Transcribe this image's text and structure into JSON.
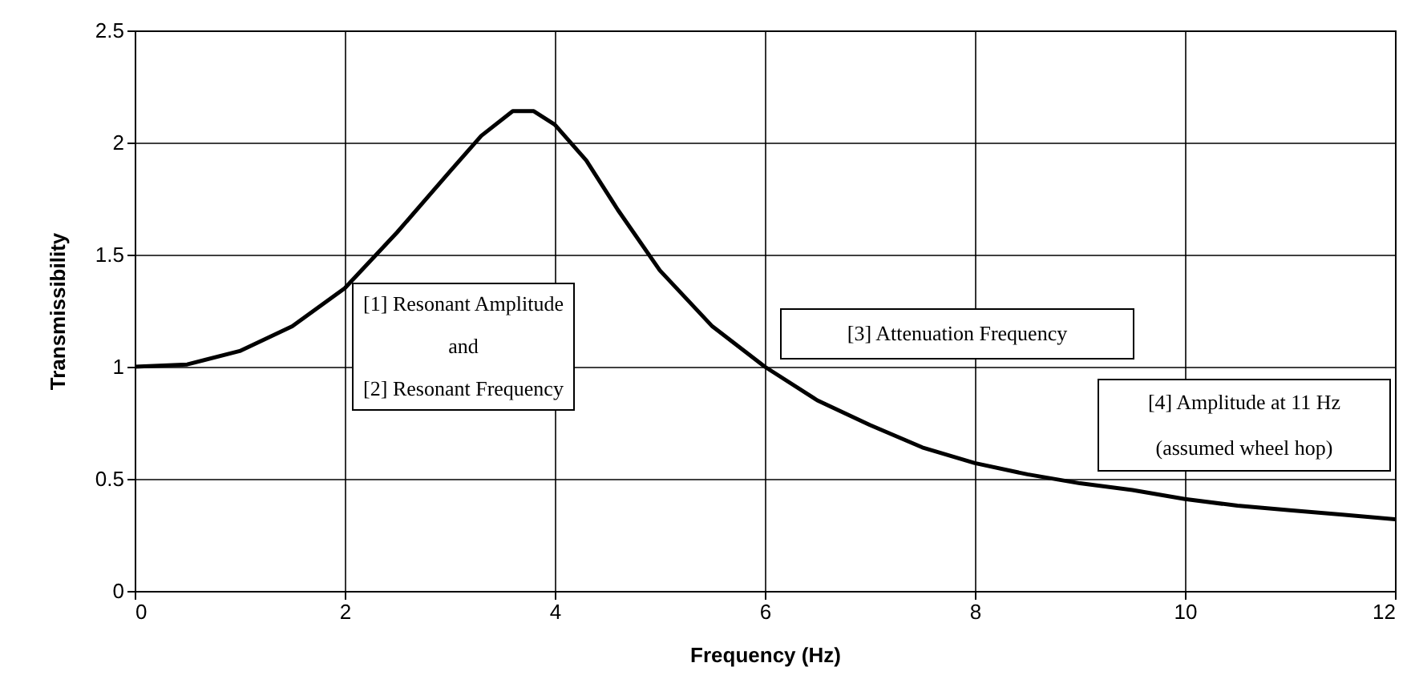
{
  "chart_data": {
    "type": "line",
    "xlabel": "Frequency (Hz)",
    "ylabel": "Transmissibility",
    "x": [
      0,
      0.5,
      1,
      1.5,
      2,
      2.5,
      3,
      3.3,
      3.6,
      3.8,
      4,
      4.3,
      4.6,
      5,
      5.5,
      6,
      6.5,
      7,
      7.5,
      8,
      8.5,
      9,
      9.5,
      10,
      10.5,
      11,
      11.5,
      12
    ],
    "series": [
      {
        "color": "#000000",
        "values": [
          1.0,
          1.01,
          1.07,
          1.18,
          1.35,
          1.6,
          1.87,
          2.03,
          2.14,
          2.14,
          2.08,
          1.92,
          1.7,
          1.43,
          1.18,
          1.0,
          0.85,
          0.74,
          0.64,
          0.57,
          0.52,
          0.48,
          0.45,
          0.41,
          0.38,
          0.36,
          0.34,
          0.32
        ]
      }
    ],
    "xlim": [
      0,
      12
    ],
    "xticks": [
      0,
      2,
      4,
      6,
      8,
      10,
      12
    ],
    "ylim": [
      0,
      2.5
    ],
    "yticks": [
      0,
      0.5,
      1,
      1.5,
      2,
      2.5
    ],
    "grid": true,
    "marker": "none",
    "line_style": "solid",
    "annotations": [
      "[1] Resonant Amplitude\nand\n[2] Resonant Frequency",
      "[3] Attenuation Frequency",
      "[4] Amplitude at 11 Hz\n(assumed wheel hop)"
    ]
  }
}
